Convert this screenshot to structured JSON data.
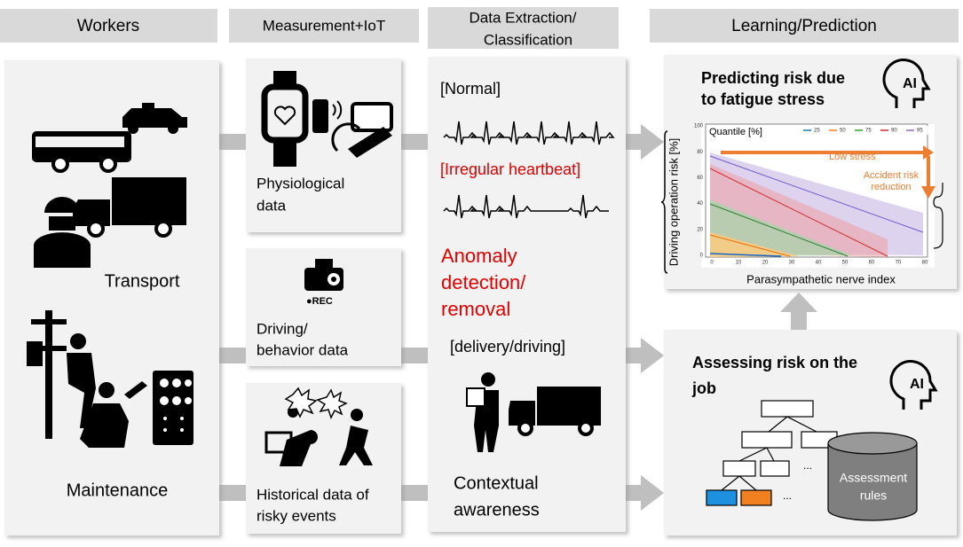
{
  "columns": [
    {
      "title": [
        "Workers"
      ]
    },
    {
      "title": [
        "Measurement+IoT"
      ]
    },
    {
      "title": [
        "Data Extraction/",
        "Classification"
      ]
    },
    {
      "title": [
        "Learning/Prediction"
      ]
    }
  ],
  "workers": {
    "transport": "Transport",
    "maintenance": "Maintenance"
  },
  "measurement": {
    "physiological": [
      "Physiological",
      "data"
    ],
    "driving": [
      "Driving/",
      "behavior data"
    ],
    "rec": "●REC",
    "historical": [
      "Historical data of",
      "risky events"
    ]
  },
  "extraction": {
    "normal": "[Normal]",
    "irregular": "[Irregular heartbeat]",
    "anomaly": [
      "Anomaly",
      "detection/",
      "removal"
    ],
    "delivery": "[delivery/driving]",
    "context": [
      "Contextual",
      "awareness"
    ]
  },
  "prediction": {
    "title": [
      "Predicting risk due",
      "to fatigue stress"
    ],
    "ai": "AI",
    "chart": {
      "legend_title": "Quantile [%]",
      "legend": [
        "25",
        "50",
        "75",
        "90",
        "95"
      ],
      "yticks": [
        "0",
        "20",
        "40",
        "60",
        "80",
        "100"
      ],
      "xticks": [
        "0",
        "10",
        "20",
        "30",
        "40",
        "50",
        "60",
        "70",
        "80"
      ],
      "ylabel": "Driving operation risk [%]",
      "xlabel": "Parasympathetic nerve index",
      "low_stress": "Low stress",
      "reduction": [
        "Accident risk",
        "reduction"
      ]
    }
  },
  "assessment": {
    "title": [
      "Assessing risk on the",
      "job"
    ],
    "ai": "AI",
    "dots": [
      "...",
      "..."
    ],
    "rules": [
      "Assessment",
      "rules"
    ]
  }
}
